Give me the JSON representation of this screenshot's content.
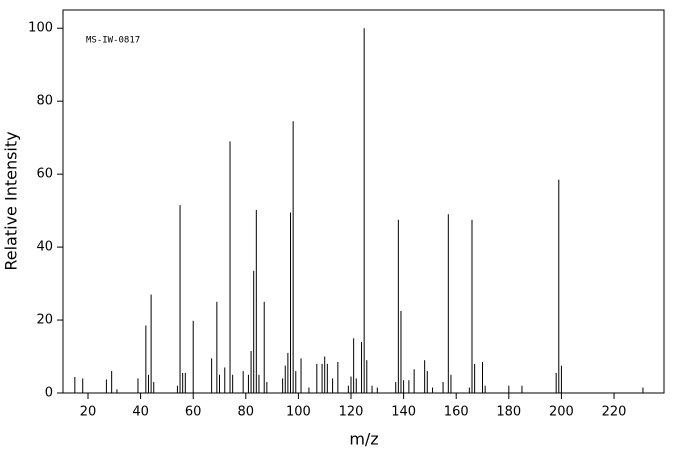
{
  "chart_data": {
    "type": "stem",
    "annotation": "MS-IW-0817",
    "x_label": "m/z",
    "y_label": "Relative Intensity",
    "color": "#000000",
    "x": [
      15,
      18,
      27,
      29,
      31,
      39,
      42,
      43,
      44,
      45,
      54,
      55,
      56,
      57,
      60,
      67,
      69,
      70,
      72,
      74,
      75,
      79,
      81,
      82,
      83,
      84,
      85,
      87,
      88,
      94,
      95,
      96,
      97,
      98,
      99,
      101,
      104,
      107,
      109,
      110,
      111,
      113,
      115,
      119,
      120,
      121,
      122,
      124,
      125,
      126,
      128,
      130,
      137,
      138,
      139,
      140,
      142,
      144,
      148,
      149,
      151,
      155,
      157,
      158,
      165,
      166,
      167,
      170,
      171,
      180,
      185,
      198,
      199,
      200,
      231
    ],
    "values": [
      4.4,
      4,
      3.7,
      6,
      1,
      4,
      18.5,
      5,
      27,
      3,
      2,
      51.5,
      5.5,
      5.5,
      19.8,
      9.5,
      25,
      5,
      7,
      69,
      5,
      6,
      5,
      11.5,
      33.5,
      50.2,
      5,
      25,
      3,
      4,
      7.5,
      11,
      49.5,
      74.5,
      6,
      9.5,
      1.5,
      8,
      8,
      10,
      8,
      4,
      8.5,
      2,
      4.5,
      15,
      4,
      14,
      100,
      9,
      2,
      1.5,
      3,
      47.5,
      22.5,
      3.5,
      3.5,
      6.5,
      9,
      6,
      1.5,
      3,
      49,
      5,
      1.5,
      47.5,
      8,
      8.5,
      2,
      2,
      2,
      5.5,
      58.5,
      7.5,
      1.5
    ],
    "xlim": [
      10.5,
      239
    ],
    "ylim": [
      0,
      105
    ],
    "xticks": [
      20,
      40,
      60,
      80,
      100,
      120,
      140,
      160,
      180,
      200,
      220
    ],
    "yticks": [
      0,
      20,
      40,
      60,
      80,
      100
    ]
  }
}
